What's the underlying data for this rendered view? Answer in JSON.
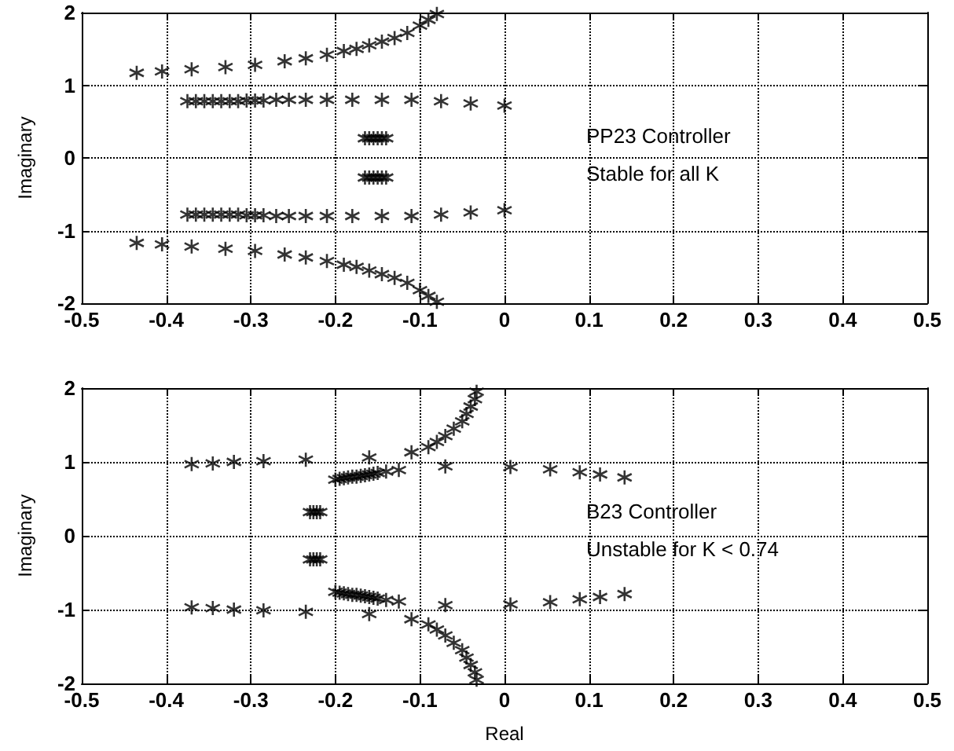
{
  "chart_data": [
    {
      "type": "scatter",
      "ylabel": "Imaginary",
      "xlim": [
        -0.5,
        0.5
      ],
      "ylim": [
        -2,
        2
      ],
      "xticks": [
        -0.5,
        -0.4,
        -0.3,
        -0.2,
        -0.1,
        0,
        0.1,
        0.2,
        0.3,
        0.4,
        0.5
      ],
      "yticks": [
        -2,
        -1,
        0,
        1,
        2
      ],
      "grid": true,
      "marker": "cross",
      "annotations": [
        "PP23 Controller",
        "Stable for all K"
      ],
      "series": [
        {
          "color": "#000000",
          "x": [
            -0.435,
            -0.405,
            -0.37,
            -0.33,
            -0.295,
            -0.26,
            -0.235,
            -0.21,
            -0.19,
            -0.175,
            -0.16,
            -0.145,
            -0.13,
            -0.115,
            -0.1,
            -0.09,
            -0.08,
            -0.435,
            -0.405,
            -0.37,
            -0.33,
            -0.295,
            -0.26,
            -0.235,
            -0.21,
            -0.19,
            -0.175,
            -0.16,
            -0.145,
            -0.13,
            -0.115,
            -0.1,
            -0.09,
            -0.08,
            -0.375,
            -0.365,
            -0.355,
            -0.345,
            -0.335,
            -0.325,
            -0.315,
            -0.305,
            -0.295,
            -0.285,
            -0.27,
            -0.255,
            -0.235,
            -0.21,
            -0.18,
            -0.145,
            -0.11,
            -0.075,
            -0.04,
            0,
            -0.375,
            -0.365,
            -0.355,
            -0.345,
            -0.335,
            -0.325,
            -0.315,
            -0.305,
            -0.295,
            -0.285,
            -0.27,
            -0.255,
            -0.235,
            -0.21,
            -0.18,
            -0.145,
            -0.11,
            -0.075,
            -0.04,
            0,
            -0.165,
            -0.16,
            -0.155,
            -0.15,
            -0.145,
            -0.14,
            -0.165,
            -0.16,
            -0.155,
            -0.15,
            -0.145,
            -0.14
          ],
          "values": [
            1.17,
            1.19,
            1.22,
            1.25,
            1.28,
            1.33,
            1.37,
            1.42,
            1.47,
            1.5,
            1.55,
            1.6,
            1.65,
            1.72,
            1.82,
            1.9,
            1.98,
            -1.17,
            -1.19,
            -1.22,
            -1.25,
            -1.28,
            -1.33,
            -1.37,
            -1.42,
            -1.47,
            -1.5,
            -1.55,
            -1.6,
            -1.65,
            -1.72,
            -1.82,
            -1.9,
            -1.98,
            0.78,
            0.78,
            0.78,
            0.78,
            0.78,
            0.78,
            0.78,
            0.79,
            0.79,
            0.79,
            0.8,
            0.8,
            0.8,
            0.8,
            0.8,
            0.8,
            0.8,
            0.78,
            0.75,
            0.72,
            -0.78,
            -0.78,
            -0.78,
            -0.78,
            -0.78,
            -0.78,
            -0.78,
            -0.79,
            -0.79,
            -0.79,
            -0.8,
            -0.8,
            -0.8,
            -0.8,
            -0.8,
            -0.8,
            -0.8,
            -0.78,
            -0.75,
            -0.72,
            0.27,
            0.27,
            0.27,
            0.27,
            0.27,
            0.27,
            -0.27,
            -0.27,
            -0.27,
            -0.27,
            -0.27,
            -0.27
          ]
        }
      ]
    },
    {
      "type": "scatter",
      "xlabel": "Real",
      "ylabel": "Imaginary",
      "xlim": [
        -0.5,
        0.5
      ],
      "ylim": [
        -2,
        2
      ],
      "xticks": [
        -0.5,
        -0.4,
        -0.3,
        -0.2,
        -0.1,
        0,
        0.1,
        0.2,
        0.3,
        0.4,
        0.5
      ],
      "yticks": [
        -2,
        -1,
        0,
        1,
        2
      ],
      "grid": true,
      "marker": "cross",
      "annotations": [
        "B23 Controller",
        "Unstable for K < 0.74"
      ],
      "series": [
        {
          "color": "#000000",
          "x": [
            -0.37,
            -0.345,
            -0.32,
            -0.285,
            -0.235,
            -0.16,
            -0.11,
            -0.09,
            -0.08,
            -0.07,
            -0.06,
            -0.05,
            -0.045,
            -0.04,
            -0.035,
            -0.033,
            -0.37,
            -0.345,
            -0.32,
            -0.285,
            -0.235,
            -0.16,
            -0.11,
            -0.09,
            -0.08,
            -0.07,
            -0.06,
            -0.05,
            -0.045,
            -0.04,
            -0.035,
            -0.033,
            -0.2,
            -0.195,
            -0.19,
            -0.185,
            -0.18,
            -0.175,
            -0.17,
            -0.165,
            -0.16,
            -0.155,
            -0.15,
            -0.14,
            -0.125,
            -0.07,
            0.007,
            0.054,
            0.089,
            0.113,
            0.142,
            -0.2,
            -0.195,
            -0.19,
            -0.185,
            -0.18,
            -0.175,
            -0.17,
            -0.165,
            -0.16,
            -0.155,
            -0.15,
            -0.14,
            -0.125,
            -0.07,
            0.007,
            0.054,
            0.089,
            0.113,
            0.142,
            -0.23,
            -0.226,
            -0.222,
            -0.218,
            -0.23,
            -0.226,
            -0.222,
            -0.218
          ],
          "values": [
            0.97,
            0.98,
            1.0,
            1.01,
            1.03,
            1.06,
            1.13,
            1.2,
            1.27,
            1.35,
            1.45,
            1.55,
            1.65,
            1.75,
            1.85,
            1.95,
            -0.97,
            -0.98,
            -1.0,
            -1.01,
            -1.03,
            -1.06,
            -1.13,
            -1.2,
            -1.27,
            -1.35,
            -1.45,
            -1.55,
            -1.65,
            -1.75,
            -1.85,
            -1.95,
            0.76,
            0.77,
            0.78,
            0.79,
            0.8,
            0.8,
            0.81,
            0.82,
            0.83,
            0.84,
            0.85,
            0.87,
            0.89,
            0.94,
            0.93,
            0.9,
            0.86,
            0.83,
            0.79,
            -0.76,
            -0.77,
            -0.78,
            -0.79,
            -0.8,
            -0.8,
            -0.81,
            -0.82,
            -0.83,
            -0.84,
            -0.85,
            -0.87,
            -0.89,
            -0.94,
            -0.93,
            -0.9,
            -0.86,
            -0.83,
            -0.79,
            0.32,
            0.32,
            0.32,
            0.32,
            -0.32,
            -0.32,
            -0.32,
            -0.32
          ]
        }
      ]
    }
  ]
}
